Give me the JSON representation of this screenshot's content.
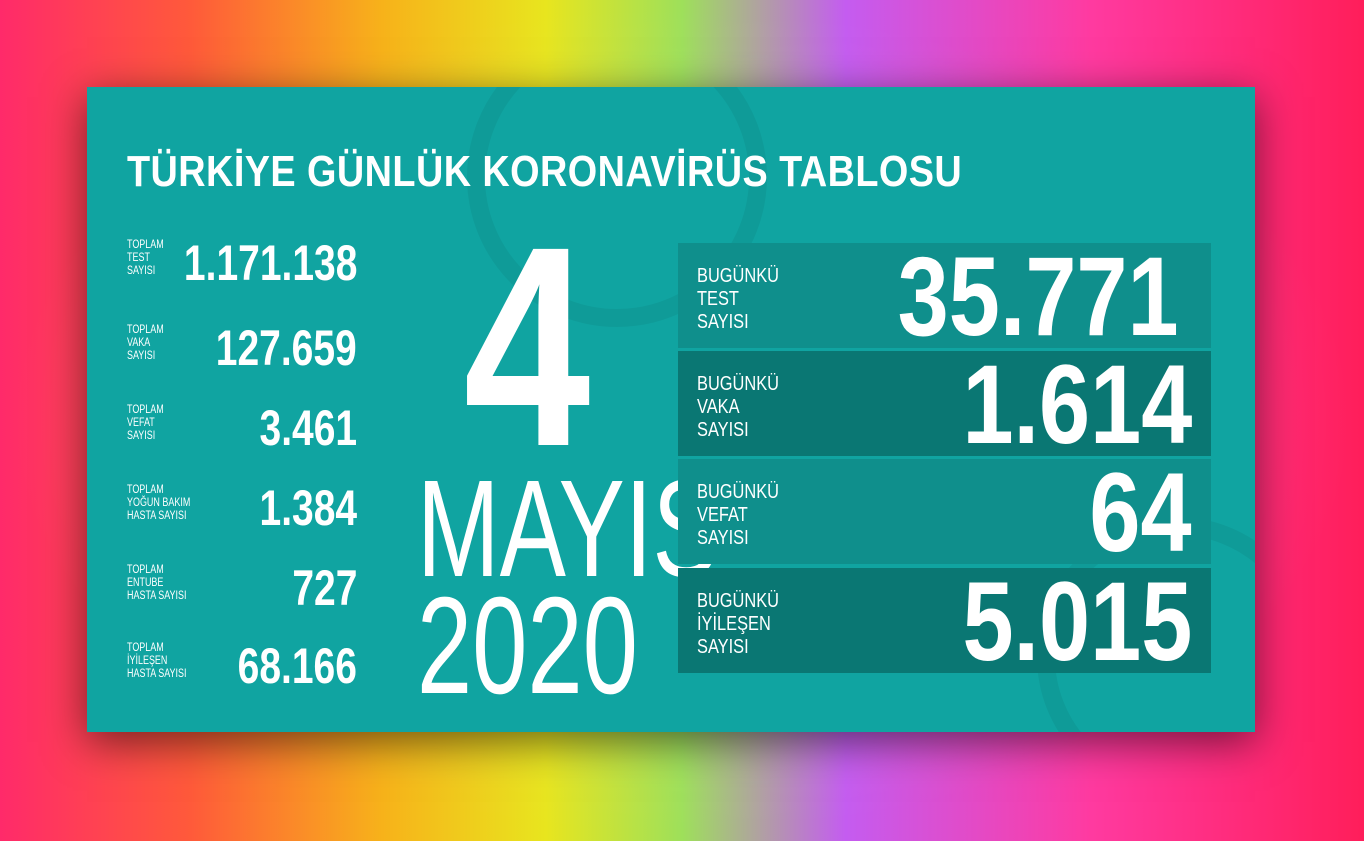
{
  "title": "TÜRKİYE GÜNLÜK KORONAVİRÜS TABLOSU",
  "date": {
    "day": "4",
    "month": "MAYIS",
    "year": "2020"
  },
  "totals": [
    {
      "label": "TOPLAM TEST SAYISI",
      "value": "1.171.138"
    },
    {
      "label": "TOPLAM VAKA SAYISI",
      "value": "127.659"
    },
    {
      "label": "TOPLAM VEFAT SAYISI",
      "value": "3.461"
    },
    {
      "label": "TOPLAM YOĞUN BAKIM HASTA SAYISI",
      "value": "1.384"
    },
    {
      "label": "TOPLAM ENTUBE HASTA SAYISI",
      "value": "727"
    },
    {
      "label": "TOPLAM İYİLEŞEN HASTA SAYISI",
      "value": "68.166"
    }
  ],
  "today": [
    {
      "label": "BUGÜNKÜ TEST SAYISI",
      "value": "35.771"
    },
    {
      "label": "BUGÜNKÜ VAKA SAYISI",
      "value": "1.614"
    },
    {
      "label": "BUGÜNKÜ VEFAT SAYISI",
      "value": "64"
    },
    {
      "label": "BUGÜNKÜ İYİLEŞEN SAYISI",
      "value": "5.015"
    }
  ],
  "colors": {
    "panel": "#10a4a1",
    "row_light": "#0f8f8c",
    "row_dark": "#0a7773"
  }
}
